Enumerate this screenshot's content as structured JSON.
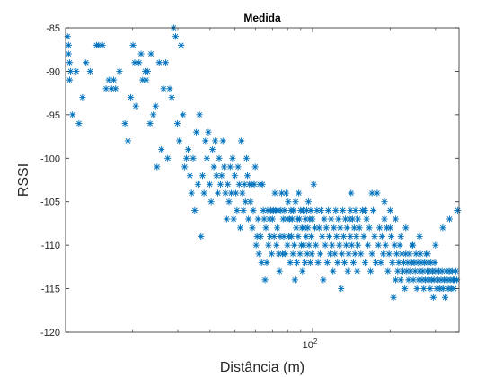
{
  "chart_data": {
    "type": "scatter",
    "title": "Medida",
    "xlabel": "Distância (m)",
    "ylabel": "RSSI",
    "xscale": "log",
    "xlim": [
      11,
      370
    ],
    "ylim": [
      -120,
      -85
    ],
    "marker": "asterisk",
    "color": "#0072BD",
    "grid": false,
    "yticks": [
      -85,
      -90,
      -95,
      -100,
      -105,
      -110,
      -115,
      -120
    ],
    "ytick_labels": [
      "-85",
      "-90",
      "-95",
      "-100",
      "-105",
      "-110",
      "-115",
      "-120"
    ],
    "xtick_labels": [
      {
        "base": "10",
        "exp": "2",
        "value": 100
      }
    ],
    "points": [
      [
        11.2,
        -86
      ],
      [
        11.3,
        -87
      ],
      [
        11.3,
        -88
      ],
      [
        11.4,
        -89
      ],
      [
        11.5,
        -90
      ],
      [
        11.4,
        -91
      ],
      [
        11.7,
        -95
      ],
      [
        12.1,
        -90
      ],
      [
        12.4,
        -96
      ],
      [
        12.8,
        -93
      ],
      [
        13.2,
        -89
      ],
      [
        13.7,
        -90
      ],
      [
        14.5,
        -87
      ],
      [
        14.8,
        -87
      ],
      [
        15.3,
        -87
      ],
      [
        15.8,
        -92
      ],
      [
        16.2,
        -91
      ],
      [
        16.6,
        -92
      ],
      [
        16.9,
        -91
      ],
      [
        17.2,
        -92
      ],
      [
        17.8,
        -90
      ],
      [
        18.7,
        -96
      ],
      [
        19.2,
        -98
      ],
      [
        19.7,
        -93
      ],
      [
        20.1,
        -87
      ],
      [
        20.6,
        -94
      ],
      [
        20.4,
        -89
      ],
      [
        21.2,
        -89
      ],
      [
        21.6,
        -88
      ],
      [
        21.9,
        -91
      ],
      [
        22.4,
        -90
      ],
      [
        22.6,
        -91
      ],
      [
        22.9,
        -90
      ],
      [
        23.4,
        -96
      ],
      [
        23.6,
        -88
      ],
      [
        24.1,
        -95
      ],
      [
        24.6,
        -94
      ],
      [
        24.9,
        -101
      ],
      [
        25.4,
        -89
      ],
      [
        25.9,
        -99
      ],
      [
        26.4,
        -92
      ],
      [
        26.9,
        -89
      ],
      [
        27.4,
        -100
      ],
      [
        27.9,
        -92
      ],
      [
        28.4,
        -93
      ],
      [
        28.9,
        -85
      ],
      [
        29.4,
        -86
      ],
      [
        29.9,
        -96
      ],
      [
        30.4,
        -98
      ],
      [
        30.9,
        -87
      ],
      [
        31.4,
        -95
      ],
      [
        31.9,
        -101
      ],
      [
        32.4,
        -100
      ],
      [
        32.9,
        -99
      ],
      [
        33.4,
        -102
      ],
      [
        33.9,
        -104
      ],
      [
        34.4,
        -100
      ],
      [
        34.9,
        -106
      ],
      [
        35.4,
        -97
      ],
      [
        35.9,
        -103
      ],
      [
        36.4,
        -95
      ],
      [
        36.9,
        -109
      ],
      [
        37.4,
        -102
      ],
      [
        37.9,
        -104
      ],
      [
        38.4,
        -98
      ],
      [
        38.9,
        -100
      ],
      [
        39.4,
        -97
      ],
      [
        39.9,
        -103
      ],
      [
        40.4,
        -105
      ],
      [
        40.9,
        -99
      ],
      [
        41.4,
        -101
      ],
      [
        41.9,
        -98
      ],
      [
        42.4,
        -102
      ],
      [
        42.9,
        -104
      ],
      [
        43.4,
        -100
      ],
      [
        43.9,
        -103
      ],
      [
        44.4,
        -102
      ],
      [
        44.9,
        -98
      ],
      [
        45.4,
        -101
      ],
      [
        45.9,
        -104
      ],
      [
        46.4,
        -107
      ],
      [
        46.9,
        -103
      ],
      [
        47.4,
        -105
      ],
      [
        47.9,
        -101
      ],
      [
        48.4,
        -104
      ],
      [
        48.9,
        -100
      ],
      [
        49.4,
        -107
      ],
      [
        49.9,
        -102
      ],
      [
        50.4,
        -104
      ],
      [
        50.9,
        -106
      ],
      [
        51.4,
        -101
      ],
      [
        51.9,
        -103
      ],
      [
        52.4,
        -108
      ],
      [
        52.9,
        -98
      ],
      [
        53.4,
        -104
      ],
      [
        53.9,
        -106
      ],
      [
        54.4,
        -103
      ],
      [
        54.9,
        -105
      ],
      [
        55.4,
        -100
      ],
      [
        55.9,
        -102
      ],
      [
        56.4,
        -107
      ],
      [
        56.9,
        -103
      ],
      [
        57.4,
        -105
      ],
      [
        57.9,
        -103
      ],
      [
        58.4,
        -108
      ],
      [
        58.9,
        -106
      ],
      [
        59.4,
        -103
      ],
      [
        59.9,
        -101
      ],
      [
        60.4,
        -110
      ],
      [
        60.9,
        -109
      ],
      [
        61.4,
        -107
      ],
      [
        61.9,
        -111
      ],
      [
        62.4,
        -103
      ],
      [
        62.9,
        -109
      ],
      [
        63.4,
        -112
      ],
      [
        63.9,
        -103
      ],
      [
        64.4,
        -106
      ],
      [
        64.9,
        -107
      ],
      [
        65.4,
        -114
      ],
      [
        65.9,
        -108
      ],
      [
        66.4,
        -112
      ],
      [
        66.9,
        -106
      ],
      [
        67.4,
        -110
      ],
      [
        67.9,
        -107
      ],
      [
        68.4,
        -109
      ],
      [
        68.9,
        -106
      ],
      [
        69.4,
        -111
      ],
      [
        69.9,
        -107
      ],
      [
        70.4,
        -106
      ],
      [
        70.9,
        -109
      ],
      [
        71.4,
        -104
      ],
      [
        71.9,
        -106
      ],
      [
        72.4,
        -110
      ],
      [
        72.9,
        -108
      ],
      [
        73.4,
        -106
      ],
      [
        73.9,
        -111
      ],
      [
        74.4,
        -113
      ],
      [
        74.9,
        -109
      ],
      [
        75.4,
        -106
      ],
      [
        75.9,
        -104
      ],
      [
        76.4,
        -111
      ],
      [
        76.9,
        -107
      ],
      [
        77.4,
        -109
      ],
      [
        77.9,
        -106
      ],
      [
        78.4,
        -111
      ],
      [
        78.9,
        -104
      ],
      [
        79.4,
        -107
      ],
      [
        79.9,
        -110
      ],
      [
        80.4,
        -105
      ],
      [
        80.9,
        -109
      ],
      [
        81.4,
        -107
      ],
      [
        81.9,
        -112
      ],
      [
        82.4,
        -106
      ],
      [
        82.9,
        -109
      ],
      [
        83.4,
        -107
      ],
      [
        83.9,
        -111
      ],
      [
        84.4,
        -106
      ],
      [
        84.9,
        -110
      ],
      [
        85.4,
        -114
      ],
      [
        85.9,
        -105
      ],
      [
        86.4,
        -108
      ],
      [
        86.9,
        -112
      ],
      [
        87.4,
        -107
      ],
      [
        87.9,
        -109
      ],
      [
        88.4,
        -104
      ],
      [
        88.9,
        -107
      ],
      [
        89.4,
        -111
      ],
      [
        89.9,
        -106
      ],
      [
        90.4,
        -110
      ],
      [
        90.9,
        -108
      ],
      [
        91.4,
        -113
      ],
      [
        91.9,
        -106
      ],
      [
        92.4,
        -110
      ],
      [
        92.9,
        -108
      ],
      [
        93.4,
        -112
      ],
      [
        93.9,
        -107
      ],
      [
        94.4,
        -109
      ],
      [
        94.9,
        -106
      ],
      [
        95.4,
        -111
      ],
      [
        95.9,
        -108
      ],
      [
        96.4,
        -105
      ],
      [
        96.9,
        -110
      ],
      [
        97.4,
        -107
      ],
      [
        97.9,
        -112
      ],
      [
        98.4,
        -106
      ],
      [
        98.9,
        -109
      ],
      [
        99.4,
        -111
      ],
      [
        99.9,
        -107
      ],
      [
        101,
        -103
      ],
      [
        102,
        -108
      ],
      [
        103,
        -110
      ],
      [
        104,
        -106
      ],
      [
        105,
        -112
      ],
      [
        106,
        -108
      ],
      [
        107,
        -111
      ],
      [
        108,
        -106
      ],
      [
        109,
        -109
      ],
      [
        110,
        -114
      ],
      [
        111,
        -107
      ],
      [
        112,
        -110
      ],
      [
        113,
        -108
      ],
      [
        114,
        -112
      ],
      [
        115,
        -106
      ],
      [
        116,
        -109
      ],
      [
        117,
        -111
      ],
      [
        118,
        -107
      ],
      [
        119,
        -110
      ],
      [
        120,
        -113
      ],
      [
        121,
        -108
      ],
      [
        122,
        -111
      ],
      [
        123,
        -106
      ],
      [
        124,
        -109
      ],
      [
        125,
        -112
      ],
      [
        126,
        -107
      ],
      [
        127,
        -110
      ],
      [
        128,
        -108
      ],
      [
        129,
        -115
      ],
      [
        130,
        -111
      ],
      [
        131,
        -106
      ],
      [
        132,
        -109
      ],
      [
        133,
        -112
      ],
      [
        134,
        -107
      ],
      [
        135,
        -110
      ],
      [
        136,
        -108
      ],
      [
        137,
        -113
      ],
      [
        138,
        -111
      ],
      [
        139,
        -107
      ],
      [
        140,
        -109
      ],
      [
        141,
        -104
      ],
      [
        142,
        -110
      ],
      [
        143,
        -107
      ],
      [
        144,
        -112
      ],
      [
        145,
        -108
      ],
      [
        146,
        -111
      ],
      [
        147,
        -106
      ],
      [
        148,
        -109
      ],
      [
        149,
        -113
      ],
      [
        150,
        -110
      ],
      [
        152,
        -108
      ],
      [
        154,
        -111
      ],
      [
        156,
        -106
      ],
      [
        158,
        -109
      ],
      [
        160,
        -112
      ],
      [
        162,
        -107
      ],
      [
        164,
        -110
      ],
      [
        166,
        -108
      ],
      [
        168,
        -113
      ],
      [
        170,
        -111
      ],
      [
        172,
        -106
      ],
      [
        174,
        -109
      ],
      [
        176,
        -112
      ],
      [
        178,
        -104
      ],
      [
        180,
        -110
      ],
      [
        182,
        -108
      ],
      [
        184,
        -112
      ],
      [
        186,
        -109
      ],
      [
        188,
        -111
      ],
      [
        190,
        -107
      ],
      [
        192,
        -110
      ],
      [
        194,
        -108
      ],
      [
        196,
        -113
      ],
      [
        198,
        -111
      ],
      [
        200,
        -106
      ],
      [
        202,
        -109
      ],
      [
        204,
        -112
      ],
      [
        206,
        -116
      ],
      [
        208,
        -110
      ],
      [
        210,
        -114
      ],
      [
        212,
        -111
      ],
      [
        214,
        -113
      ],
      [
        216,
        -112
      ],
      [
        218,
        -110
      ],
      [
        220,
        -114
      ],
      [
        222,
        -111
      ],
      [
        224,
        -113
      ],
      [
        226,
        -112
      ],
      [
        228,
        -115
      ],
      [
        230,
        -111
      ],
      [
        232,
        -113
      ],
      [
        234,
        -112
      ],
      [
        236,
        -114
      ],
      [
        238,
        -111
      ],
      [
        240,
        -113
      ],
      [
        242,
        -112
      ],
      [
        244,
        -110
      ],
      [
        246,
        -114
      ],
      [
        248,
        -112
      ],
      [
        250,
        -113
      ],
      [
        252,
        -111
      ],
      [
        254,
        -115
      ],
      [
        256,
        -112
      ],
      [
        258,
        -114
      ],
      [
        260,
        -113
      ],
      [
        262,
        -111
      ],
      [
        264,
        -112
      ],
      [
        266,
        -114
      ],
      [
        268,
        -113
      ],
      [
        270,
        -115
      ],
      [
        272,
        -112
      ],
      [
        274,
        -114
      ],
      [
        276,
        -111
      ],
      [
        278,
        -113
      ],
      [
        280,
        -112
      ],
      [
        282,
        -114
      ],
      [
        284,
        -113
      ],
      [
        286,
        -115
      ],
      [
        288,
        -112
      ],
      [
        290,
        -114
      ],
      [
        292,
        -113
      ],
      [
        294,
        -116
      ],
      [
        296,
        -114
      ],
      [
        298,
        -112
      ],
      [
        300,
        -113
      ],
      [
        303,
        -115
      ],
      [
        306,
        -114
      ],
      [
        309,
        -113
      ],
      [
        312,
        -115
      ],
      [
        315,
        -114
      ],
      [
        318,
        -113
      ],
      [
        321,
        -115
      ],
      [
        324,
        -114
      ],
      [
        327,
        -116
      ],
      [
        330,
        -113
      ],
      [
        333,
        -114
      ],
      [
        336,
        -115
      ],
      [
        339,
        -113
      ],
      [
        342,
        -114
      ],
      [
        345,
        -115
      ],
      [
        348,
        -113
      ],
      [
        351,
        -114
      ],
      [
        354,
        -115
      ],
      [
        357,
        -114
      ],
      [
        360,
        -113
      ],
      [
        363,
        -114
      ],
      [
        366,
        -106
      ],
      [
        200,
        -108
      ],
      [
        210,
        -107
      ],
      [
        220,
        -109
      ],
      [
        230,
        -108
      ],
      [
        245,
        -110
      ],
      [
        260,
        -109
      ],
      [
        280,
        -111
      ],
      [
        300,
        -110
      ],
      [
        320,
        -108
      ],
      [
        340,
        -107
      ],
      [
        190,
        -105
      ],
      [
        170,
        -104
      ],
      [
        160,
        -106
      ],
      [
        150,
        -107
      ],
      [
        140,
        -106
      ]
    ]
  }
}
